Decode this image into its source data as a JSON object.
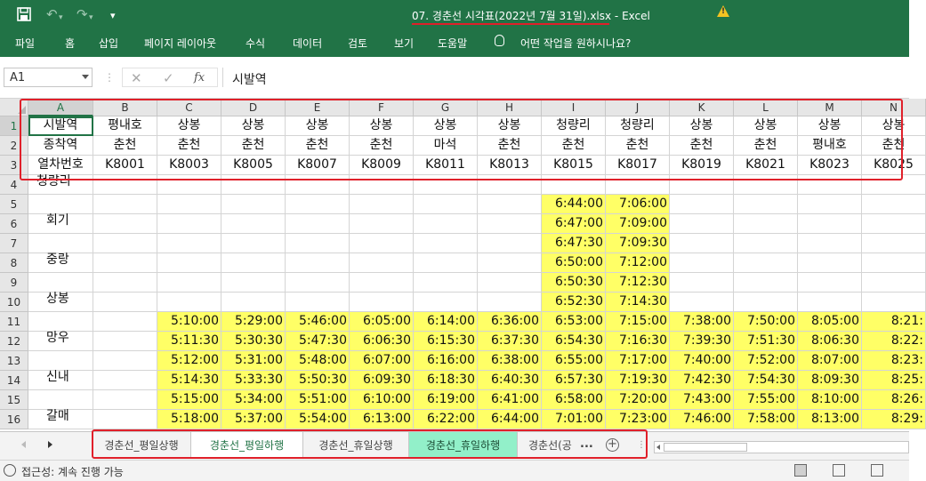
{
  "window": {
    "title": "07. 경춘선 시각표(2022년 7월 31일).xlsx  -  Excel",
    "quick_access": {
      "save": "save-icon",
      "undo": "↶",
      "redo": "↷",
      "customize": "▾"
    },
    "warning_icon": "warning-icon"
  },
  "menu": [
    "파일",
    "홈",
    "삽입",
    "페이지 레이아웃",
    "수식",
    "데이터",
    "검토",
    "보기",
    "도움말"
  ],
  "tell_me": "어떤 작업을 원하시나요?",
  "formula_bar": {
    "name_box": "A1",
    "cancel": "✕",
    "confirm": "✓",
    "fx": "fx",
    "value": "시발역"
  },
  "columns": [
    "A",
    "B",
    "C",
    "D",
    "E",
    "F",
    "G",
    "H",
    "I",
    "J",
    "K",
    "L",
    "M",
    "N"
  ],
  "rows": [
    "1",
    "2",
    "3",
    "4",
    "5",
    "6",
    "7",
    "8",
    "9",
    "10",
    "11",
    "12",
    "13",
    "14",
    "15",
    "16"
  ],
  "header_rows": [
    [
      "시발역",
      "평내호",
      "상봉",
      "상봉",
      "상봉",
      "상봉",
      "상봉",
      "상봉",
      "청량리",
      "청량리",
      "상봉",
      "상봉",
      "상봉",
      "상봉"
    ],
    [
      "종착역",
      "춘천",
      "춘천",
      "춘천",
      "춘천",
      "춘천",
      "마석",
      "춘천",
      "춘천",
      "춘천",
      "춘천",
      "춘천",
      "평내호",
      "춘천"
    ],
    [
      "열차번호",
      "K8001",
      "K8003",
      "K8005",
      "K8007",
      "K8009",
      "K8011",
      "K8013",
      "K8015",
      "K8017",
      "K8019",
      "K8021",
      "K8023",
      "K8025"
    ]
  ],
  "station_labels": [
    {
      "row": 4,
      "text": "청량리"
    },
    {
      "row": 6,
      "text": "회기"
    },
    {
      "row": 8,
      "text": "중랑"
    },
    {
      "row": 10,
      "text": "상봉"
    },
    {
      "row": 12,
      "text": "망우"
    },
    {
      "row": 14,
      "text": "신내"
    },
    {
      "row": 16,
      "text": "갈매"
    }
  ],
  "times_rows5to10": {
    "I": [
      "6:44:00",
      "6:47:00",
      "6:47:30",
      "6:50:00",
      "6:50:30",
      "6:52:30"
    ],
    "J": [
      "7:06:00",
      "7:09:00",
      "7:09:30",
      "7:12:00",
      "7:12:30",
      "7:14:30"
    ]
  },
  "times_rows11to16": [
    [
      "5:10:00",
      "5:29:00",
      "5:46:00",
      "6:05:00",
      "6:14:00",
      "6:36:00",
      "6:53:00",
      "7:15:00",
      "7:38:00",
      "7:50:00",
      "8:05:00",
      "8:21:"
    ],
    [
      "5:11:30",
      "5:30:30",
      "5:47:30",
      "6:06:30",
      "6:15:30",
      "6:37:30",
      "6:54:30",
      "7:16:30",
      "7:39:30",
      "7:51:30",
      "8:06:30",
      "8:22:"
    ],
    [
      "5:12:00",
      "5:31:00",
      "5:48:00",
      "6:07:00",
      "6:16:00",
      "6:38:00",
      "6:55:00",
      "7:17:00",
      "7:40:00",
      "7:52:00",
      "8:07:00",
      "8:23:"
    ],
    [
      "5:14:30",
      "5:33:30",
      "5:50:30",
      "6:09:30",
      "6:18:30",
      "6:40:30",
      "6:57:30",
      "7:19:30",
      "7:42:30",
      "7:54:30",
      "8:09:30",
      "8:25:"
    ],
    [
      "5:15:00",
      "5:34:00",
      "5:51:00",
      "6:10:00",
      "6:19:00",
      "6:41:00",
      "6:58:00",
      "7:20:00",
      "7:43:00",
      "7:55:00",
      "8:10:00",
      "8:26:"
    ],
    [
      "5:18:00",
      "5:37:00",
      "5:54:00",
      "6:13:00",
      "6:22:00",
      "6:44:00",
      "7:01:00",
      "7:23:00",
      "7:46:00",
      "7:58:00",
      "8:13:00",
      "8:29:"
    ]
  ],
  "sheet_tabs": [
    "경춘선_평일상행",
    "경춘선_평일하행",
    "경춘선_휴일상행",
    "경춘선_휴일하행",
    "경춘선(공"
  ],
  "active_tab_index": 1,
  "more_tabs": "...",
  "add_sheet": "+",
  "status": "접근성: 계속 진행 가능",
  "highlight_color": "#ffff66",
  "accent_color": "#217346",
  "annotation_color": "#e0202a"
}
